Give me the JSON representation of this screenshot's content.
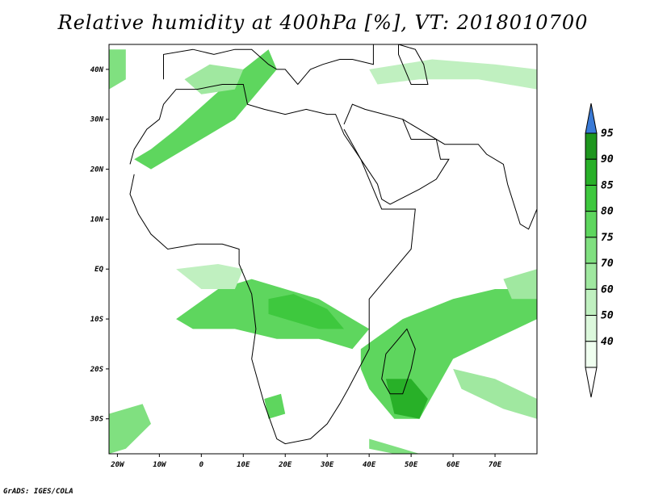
{
  "title": "Relative humidity at 400hPa [%], VT: 2018010700",
  "credit": "GrADS: IGES/COLA",
  "map": {
    "projection": "latlon",
    "lon_range": [
      -22,
      80
    ],
    "lat_range": [
      -37,
      45
    ],
    "lat_ticks": [
      {
        "value": 40,
        "label": "40N"
      },
      {
        "value": 30,
        "label": "30N"
      },
      {
        "value": 20,
        "label": "20N"
      },
      {
        "value": 10,
        "label": "10N"
      },
      {
        "value": 0,
        "label": "EQ"
      },
      {
        "value": -10,
        "label": "10S"
      },
      {
        "value": -20,
        "label": "20S"
      },
      {
        "value": -30,
        "label": "30S"
      }
    ],
    "lon_ticks": [
      {
        "value": -20,
        "label": "20W"
      },
      {
        "value": -10,
        "label": "10W"
      },
      {
        "value": 0,
        "label": "0"
      },
      {
        "value": 10,
        "label": "10E"
      },
      {
        "value": 20,
        "label": "20E"
      },
      {
        "value": 30,
        "label": "30E"
      },
      {
        "value": 40,
        "label": "40E"
      },
      {
        "value": 50,
        "label": "50E"
      },
      {
        "value": 60,
        "label": "60E"
      },
      {
        "value": 70,
        "label": "70E"
      }
    ]
  },
  "colorbar": {
    "levels": [
      {
        "label": "40",
        "color": "#f0fff0"
      },
      {
        "label": "50",
        "color": "#dcf8dc"
      },
      {
        "label": "60",
        "color": "#c0f0c0"
      },
      {
        "label": "70",
        "color": "#a0e8a0"
      },
      {
        "label": "75",
        "color": "#80e080"
      },
      {
        "label": "80",
        "color": "#5ed65e"
      },
      {
        "label": "85",
        "color": "#3ec83e"
      },
      {
        "label": "90",
        "color": "#28b028"
      },
      {
        "label": "95",
        "color": "#1e961e"
      }
    ],
    "over_color": "#3a7ad6",
    "under_color": "#ffffff"
  },
  "humidity_regions": [
    {
      "name": "nw-africa-plume",
      "level": "80",
      "coords": [
        [
          -8,
          22
        ],
        [
          0,
          26
        ],
        [
          8,
          30
        ],
        [
          14,
          36
        ],
        [
          18,
          40
        ],
        [
          16,
          44
        ],
        [
          10,
          40
        ],
        [
          2,
          34
        ],
        [
          -6,
          28
        ],
        [
          -12,
          24
        ],
        [
          -16,
          22
        ],
        [
          -12,
          20
        ]
      ]
    },
    {
      "name": "north-atlantic-coast",
      "level": "75",
      "coords": [
        [
          -22,
          44
        ],
        [
          -18,
          44
        ],
        [
          -18,
          38
        ],
        [
          -22,
          36
        ]
      ]
    },
    {
      "name": "med-band",
      "level": "70",
      "coords": [
        [
          -4,
          38
        ],
        [
          2,
          41
        ],
        [
          10,
          40
        ],
        [
          8,
          36
        ],
        [
          0,
          35
        ]
      ]
    },
    {
      "name": "turkey-band",
      "level": "60",
      "coords": [
        [
          40,
          40
        ],
        [
          55,
          42
        ],
        [
          70,
          41
        ],
        [
          80,
          40
        ],
        [
          80,
          36
        ],
        [
          66,
          38
        ],
        [
          52,
          38
        ],
        [
          42,
          37
        ]
      ]
    },
    {
      "name": "central-africa-belt",
      "level": "80",
      "coords": [
        [
          -6,
          -10
        ],
        [
          4,
          -4
        ],
        [
          12,
          -2
        ],
        [
          20,
          -4
        ],
        [
          28,
          -6
        ],
        [
          36,
          -10
        ],
        [
          40,
          -12
        ],
        [
          36,
          -16
        ],
        [
          28,
          -14
        ],
        [
          18,
          -14
        ],
        [
          8,
          -12
        ],
        [
          -2,
          -12
        ]
      ]
    },
    {
      "name": "central-africa-core",
      "level": "85",
      "coords": [
        [
          16,
          -6
        ],
        [
          22,
          -5
        ],
        [
          30,
          -8
        ],
        [
          34,
          -12
        ],
        [
          28,
          -12
        ],
        [
          20,
          -10
        ],
        [
          16,
          -9
        ]
      ]
    },
    {
      "name": "west-equatorial",
      "level": "60",
      "coords": [
        [
          -6,
          0
        ],
        [
          4,
          1
        ],
        [
          10,
          0
        ],
        [
          8,
          -4
        ],
        [
          0,
          -4
        ]
      ]
    },
    {
      "name": "se-ocean-plume",
      "level": "80",
      "coords": [
        [
          38,
          -16
        ],
        [
          48,
          -10
        ],
        [
          60,
          -6
        ],
        [
          70,
          -4
        ],
        [
          80,
          -4
        ],
        [
          80,
          -10
        ],
        [
          70,
          -14
        ],
        [
          60,
          -18
        ],
        [
          56,
          -24
        ],
        [
          52,
          -30
        ],
        [
          46,
          -30
        ],
        [
          40,
          -24
        ],
        [
          38,
          -20
        ]
      ]
    },
    {
      "name": "madagascar-core",
      "level": "90",
      "coords": [
        [
          44,
          -22
        ],
        [
          50,
          -22
        ],
        [
          54,
          -26
        ],
        [
          52,
          -30
        ],
        [
          46,
          -29
        ]
      ]
    },
    {
      "name": "indian-ocean-streak",
      "level": "70",
      "coords": [
        [
          60,
          -20
        ],
        [
          70,
          -22
        ],
        [
          80,
          -26
        ],
        [
          80,
          -30
        ],
        [
          72,
          -28
        ],
        [
          62,
          -24
        ]
      ]
    },
    {
      "name": "south-africa-spot",
      "level": "80",
      "coords": [
        [
          15,
          -26
        ],
        [
          19,
          -25
        ],
        [
          20,
          -29
        ],
        [
          16,
          -30
        ]
      ]
    },
    {
      "name": "sw-atlantic",
      "level": "75",
      "coords": [
        [
          -22,
          -29
        ],
        [
          -14,
          -27
        ],
        [
          -12,
          -31
        ],
        [
          -18,
          -36
        ],
        [
          -22,
          -37
        ]
      ]
    },
    {
      "name": "south-east-streak",
      "level": "75",
      "coords": [
        [
          40,
          -34
        ],
        [
          48,
          -36
        ],
        [
          52,
          -37
        ],
        [
          46,
          -37
        ],
        [
          40,
          -36
        ]
      ]
    },
    {
      "name": "east-trailing",
      "level": "70",
      "coords": [
        [
          72,
          -2
        ],
        [
          80,
          0
        ],
        [
          80,
          -6
        ],
        [
          74,
          -6
        ]
      ]
    }
  ],
  "map_outlines": [
    {
      "name": "africa-coastline",
      "coords": [
        [
          -17,
          21
        ],
        [
          -16,
          24
        ],
        [
          -13,
          28
        ],
        [
          -10,
          30
        ],
        [
          -9,
          33
        ],
        [
          -6,
          36
        ],
        [
          -1,
          36
        ],
        [
          5,
          37
        ],
        [
          10,
          37
        ],
        [
          11,
          33
        ],
        [
          15,
          32
        ],
        [
          20,
          31
        ],
        [
          25,
          32
        ],
        [
          30,
          31
        ],
        [
          32,
          31
        ],
        [
          34,
          27
        ],
        [
          38,
          22
        ],
        [
          43,
          12
        ],
        [
          51,
          12
        ],
        [
          50,
          4
        ],
        [
          44,
          -2
        ],
        [
          40,
          -6
        ],
        [
          40,
          -16
        ],
        [
          35,
          -24
        ],
        [
          33,
          -27
        ],
        [
          30,
          -31
        ],
        [
          26,
          -34
        ],
        [
          20,
          -35
        ],
        [
          18,
          -34
        ],
        [
          15,
          -27
        ],
        [
          12,
          -18
        ],
        [
          13,
          -12
        ],
        [
          12,
          -5
        ],
        [
          9,
          1
        ],
        [
          9,
          4
        ],
        [
          5,
          5
        ],
        [
          -1,
          5
        ],
        [
          -8,
          4
        ],
        [
          -12,
          7
        ],
        [
          -15,
          11
        ],
        [
          -17,
          15
        ],
        [
          -16,
          19
        ]
      ]
    },
    {
      "name": "madagascar",
      "coords": [
        [
          49,
          -12
        ],
        [
          51,
          -16
        ],
        [
          50,
          -20
        ],
        [
          48,
          -25
        ],
        [
          45,
          -25
        ],
        [
          43,
          -22
        ],
        [
          44,
          -17
        ],
        [
          47,
          -14
        ]
      ]
    },
    {
      "name": "arabia",
      "coords": [
        [
          34,
          29
        ],
        [
          36,
          33
        ],
        [
          39,
          32
        ],
        [
          48,
          30
        ],
        [
          50,
          26
        ],
        [
          56,
          26
        ],
        [
          57,
          22
        ],
        [
          59,
          22
        ],
        [
          56,
          18
        ],
        [
          52,
          16
        ],
        [
          45,
          13
        ],
        [
          43,
          14
        ],
        [
          42,
          17
        ],
        [
          38,
          22
        ],
        [
          34,
          28
        ]
      ]
    },
    {
      "name": "iran-india",
      "coords": [
        [
          48,
          30
        ],
        [
          52,
          28
        ],
        [
          58,
          25
        ],
        [
          66,
          25
        ],
        [
          68,
          23
        ],
        [
          72,
          21
        ],
        [
          73,
          17
        ],
        [
          76,
          9
        ],
        [
          78,
          8
        ],
        [
          80,
          12
        ],
        [
          80,
          16
        ]
      ]
    },
    {
      "name": "europe-south",
      "coords": [
        [
          -9,
          38
        ],
        [
          -9,
          43
        ],
        [
          -2,
          44
        ],
        [
          3,
          43
        ],
        [
          8,
          44
        ],
        [
          12,
          44
        ],
        [
          16,
          41
        ],
        [
          18,
          40
        ],
        [
          20,
          40
        ],
        [
          23,
          37
        ],
        [
          26,
          40
        ],
        [
          29,
          41
        ],
        [
          33,
          42
        ],
        [
          36,
          42
        ],
        [
          41,
          41
        ],
        [
          41,
          45
        ]
      ]
    },
    {
      "name": "caspian",
      "coords": [
        [
          47,
          45
        ],
        [
          51,
          44
        ],
        [
          53,
          41
        ],
        [
          54,
          37
        ],
        [
          50,
          37
        ],
        [
          49,
          39
        ],
        [
          47,
          43
        ]
      ]
    }
  ]
}
